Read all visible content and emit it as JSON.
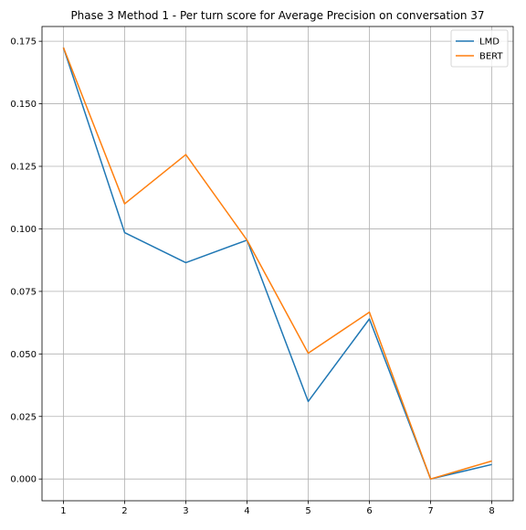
{
  "chart_data": {
    "type": "line",
    "title": "Phase 3 Method 1 - Per turn score for Average Precision on conversation 37",
    "xlabel": "",
    "ylabel": "",
    "x": [
      1,
      2,
      3,
      4,
      5,
      6,
      7,
      8
    ],
    "xlim": [
      0.65,
      8.35
    ],
    "ylim": [
      -0.0087,
      0.1809
    ],
    "xticks": [
      1,
      2,
      3,
      4,
      5,
      6,
      7,
      8
    ],
    "yticks": [
      0.0,
      0.025,
      0.05,
      0.075,
      0.1,
      0.125,
      0.15,
      0.175
    ],
    "ytick_labels": [
      "0.000",
      "0.025",
      "0.050",
      "0.075",
      "0.100",
      "0.125",
      "0.150",
      "0.175"
    ],
    "grid": true,
    "legend_position": "top-right",
    "series": [
      {
        "name": "LMD",
        "color": "#1f77b4",
        "values": [
          0.1725,
          0.0985,
          0.0865,
          0.0955,
          0.031,
          0.064,
          0.0,
          0.0058
        ]
      },
      {
        "name": "BERT",
        "color": "#ff7f0e",
        "values": [
          0.1725,
          0.11,
          0.1297,
          0.0955,
          0.0503,
          0.0667,
          0.0,
          0.0072
        ]
      }
    ]
  }
}
